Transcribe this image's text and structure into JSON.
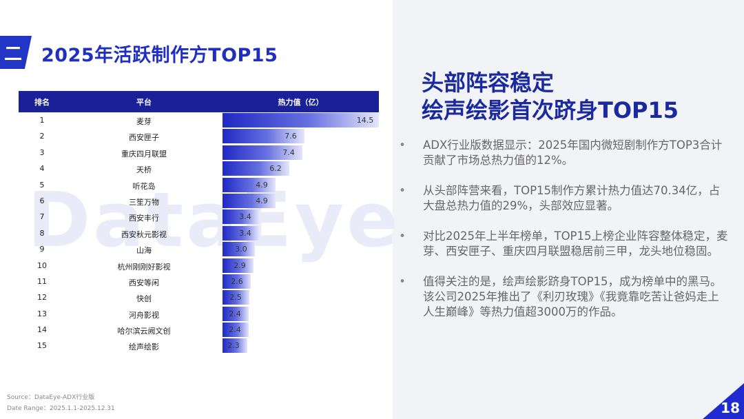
{
  "header": {
    "section_num": "二",
    "title": "2025年活跃制作方TOP15"
  },
  "watermark": "DataEye",
  "table": {
    "col_rank": "排名",
    "col_platform": "平台",
    "col_value": "热力值（亿）"
  },
  "chart_data": {
    "type": "bar",
    "orientation": "horizontal",
    "title": "2025年活跃制作方TOP15",
    "value_label": "热力值（亿）",
    "categories": [
      "麦芽",
      "西安匣子",
      "重庆四月联盟",
      "天桥",
      "听花岛",
      "三笙万物",
      "西安丰行",
      "西安秋元影视",
      "山海",
      "杭州刚刚好影视",
      "西安等闲",
      "快创",
      "河舟影视",
      "哈尔滨云阙文创",
      "绘声绘影"
    ],
    "ranks": [
      "1",
      "2",
      "3",
      "4",
      "5",
      "6",
      "7",
      "8",
      "9",
      "10",
      "11",
      "12",
      "13",
      "14",
      "15"
    ],
    "values": [
      14.5,
      7.6,
      7.4,
      6.2,
      4.9,
      4.9,
      3.4,
      3.4,
      3.0,
      2.9,
      2.6,
      2.5,
      2.4,
      2.4,
      2.3
    ],
    "labels": [
      "14.5",
      "7.6",
      "7.4",
      "6.2",
      "4.9",
      "4.9",
      "3.4",
      "3.4",
      "3.0",
      "2.9",
      "2.6",
      "2.5",
      "2.4",
      "2.4",
      "2.3"
    ],
    "xlim": [
      0,
      14.5
    ]
  },
  "source": {
    "line1": "Source：DataEye-ADX行业版",
    "line2": "Date Range：2025.1.1-2025.12.31"
  },
  "right": {
    "title_line1": "头部阵容稳定",
    "title_line2": "绘声绘影首次跻身TOP15",
    "bullet_symbol": "•",
    "bullets": [
      "ADX行业版数据显示：2025年国内微短剧制作方TOP3合计贡献了市场总热力值的12%。",
      "从头部阵营来看，TOP15制作方累计热力值达70.34亿，占大盘总热力值的29%，头部效应显著。",
      "对比2025年上半年榜单，TOP15上榜企业阵容整体稳定，麦芽、西安匣子、重庆四月联盟稳居前三甲，龙头地位稳固。",
      "值得关注的是，绘声绘影跻身TOP15，成为榜单中的黑马。该公司2025年推出了《利刃玫瑰》《我竟靠吃苦让爸妈走上人生巅峰》等热力值超3000万的作品。"
    ]
  },
  "page_number": "18"
}
